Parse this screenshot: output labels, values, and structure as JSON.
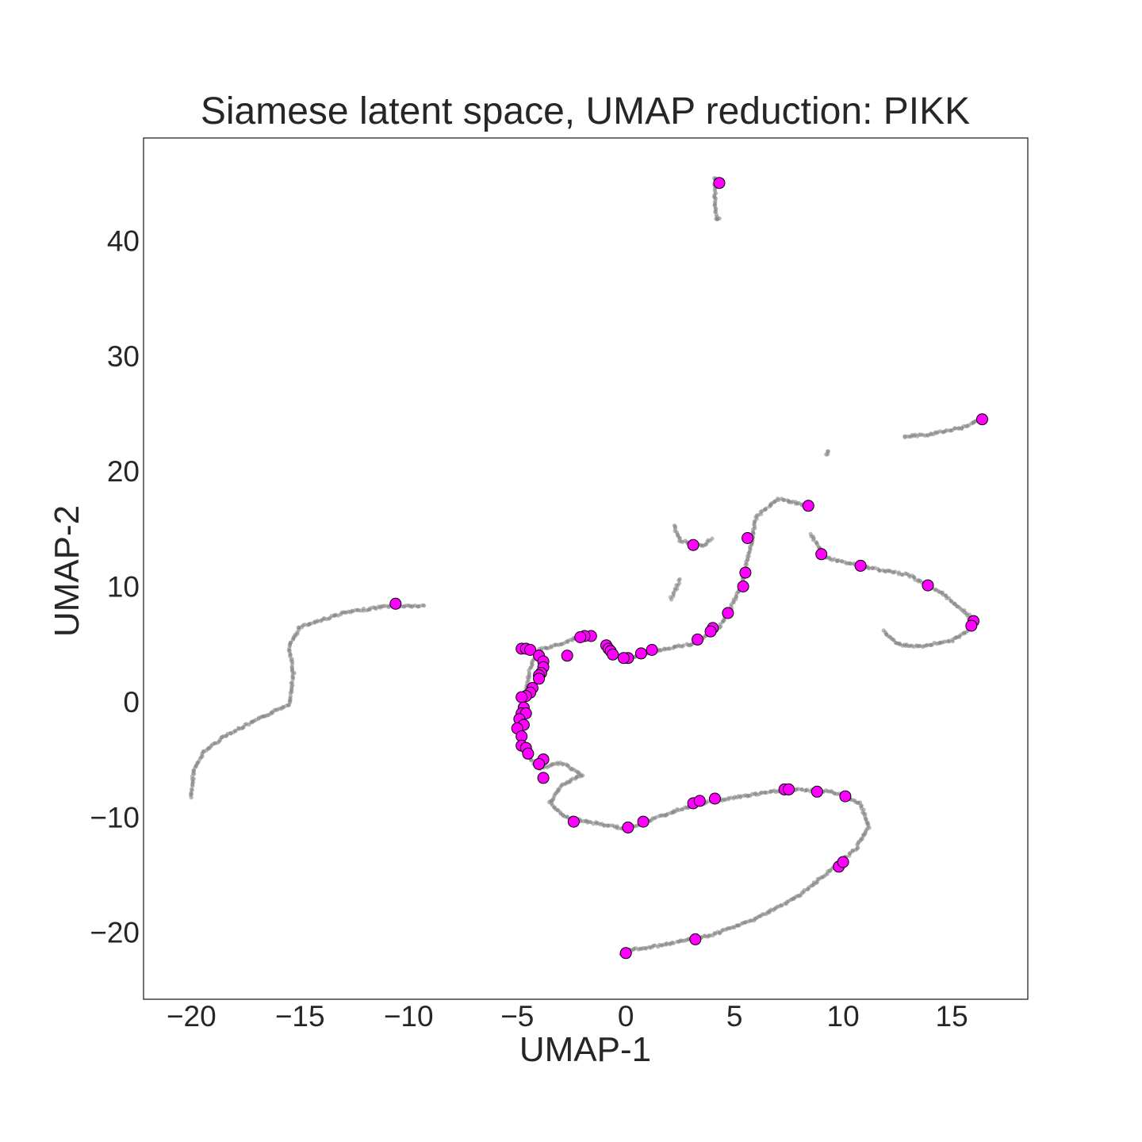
{
  "chart_data": {
    "type": "scatter",
    "title": "Siamese latent space, UMAP reduction: PIKK",
    "xlabel": "UMAP-1",
    "ylabel": "UMAP-2",
    "xlim": [
      -22.2,
      18.5
    ],
    "ylim": [
      -25.8,
      48.9
    ],
    "xticks": [
      {
        "value": -20,
        "label": "−20"
      },
      {
        "value": -15,
        "label": "−15"
      },
      {
        "value": -10,
        "label": "−10"
      },
      {
        "value": -5,
        "label": "−5"
      },
      {
        "value": 0,
        "label": "0"
      },
      {
        "value": 5,
        "label": "5"
      },
      {
        "value": 10,
        "label": "10"
      },
      {
        "value": 15,
        "label": "15"
      }
    ],
    "yticks": [
      {
        "value": -20,
        "label": "−20"
      },
      {
        "value": -10,
        "label": "−10"
      },
      {
        "value": 0,
        "label": "0"
      },
      {
        "value": 10,
        "label": "10"
      },
      {
        "value": 20,
        "label": "20"
      },
      {
        "value": 30,
        "label": "30"
      },
      {
        "value": 40,
        "label": "40"
      }
    ],
    "grid": false,
    "legend": "none",
    "colors": {
      "background_points": "#7f7f7f",
      "highlight_points": "#ff00ff",
      "highlight_edge": "#000000"
    },
    "background_curves": [
      [
        [
          -20.0,
          -8.3
        ],
        [
          -19.9,
          -6.0
        ],
        [
          -19.4,
          -4.3
        ],
        [
          -18.5,
          -3.0
        ],
        [
          -17.0,
          -1.6
        ],
        [
          -15.5,
          -0.2
        ],
        [
          -15.3,
          2.5
        ],
        [
          -15.5,
          4.8
        ],
        [
          -15.0,
          6.5
        ],
        [
          -13.0,
          7.7
        ],
        [
          -11.0,
          8.3
        ],
        [
          -9.2,
          8.3
        ]
      ],
      [
        [
          -2.0,
          5.8
        ],
        [
          -3.0,
          5.0
        ],
        [
          -4.0,
          4.5
        ],
        [
          -4.4,
          3.0
        ],
        [
          -4.6,
          1.0
        ],
        [
          -4.8,
          -1.0
        ],
        [
          -4.9,
          -3.0
        ],
        [
          -4.6,
          -4.5
        ],
        [
          -4.0,
          -5.8
        ],
        [
          -3.0,
          -5.3
        ],
        [
          -2.0,
          -6.3
        ],
        [
          -3.0,
          -7.3
        ],
        [
          -3.5,
          -8.8
        ],
        [
          -2.8,
          -10.0
        ],
        [
          -1.5,
          -10.5
        ],
        [
          0.0,
          -11.0
        ],
        [
          1.5,
          -10.0
        ],
        [
          3.0,
          -9.0
        ],
        [
          5.0,
          -8.3
        ],
        [
          7.5,
          -7.6
        ],
        [
          9.5,
          -7.8
        ],
        [
          10.8,
          -8.8
        ],
        [
          11.2,
          -10.8
        ],
        [
          10.6,
          -12.7
        ],
        [
          9.5,
          -14.5
        ],
        [
          8.0,
          -16.8
        ],
        [
          6.0,
          -18.8
        ],
        [
          4.0,
          -20.2
        ],
        [
          2.0,
          -21.0
        ],
        [
          0.0,
          -21.6
        ],
        [
          -0.3,
          -22.0
        ]
      ],
      [
        [
          -1.0,
          5.0
        ],
        [
          -0.6,
          4.2
        ],
        [
          0.0,
          3.8
        ],
        [
          0.6,
          3.9
        ],
        [
          1.5,
          4.5
        ],
        [
          3.0,
          5.0
        ],
        [
          4.2,
          6.2
        ],
        [
          4.8,
          8.0
        ],
        [
          5.3,
          10.0
        ],
        [
          5.7,
          13.0
        ],
        [
          6.0,
          16.0
        ],
        [
          7.0,
          17.6
        ],
        [
          8.3,
          17.0
        ]
      ],
      [
        [
          8.5,
          14.5
        ],
        [
          9.2,
          12.5
        ],
        [
          11.0,
          11.7
        ],
        [
          13.0,
          11.0
        ],
        [
          14.5,
          9.5
        ],
        [
          15.8,
          7.5
        ],
        [
          16.0,
          6.5
        ],
        [
          15.0,
          5.3
        ],
        [
          13.5,
          4.8
        ],
        [
          12.5,
          5.0
        ],
        [
          11.8,
          6.2
        ]
      ],
      [
        [
          12.8,
          23.0
        ],
        [
          14.0,
          23.2
        ],
        [
          15.5,
          23.8
        ],
        [
          16.4,
          24.5
        ]
      ],
      [
        [
          4.1,
          45.5
        ],
        [
          4.1,
          43.0
        ],
        [
          4.2,
          41.8
        ],
        [
          4.4,
          42.0
        ]
      ],
      [
        [
          2.2,
          15.3
        ],
        [
          2.5,
          14.0
        ],
        [
          3.5,
          13.5
        ],
        [
          4.0,
          14.2
        ]
      ],
      [
        [
          2.5,
          10.6
        ],
        [
          2.2,
          9.3
        ],
        [
          2.0,
          8.8
        ]
      ],
      [
        [
          9.3,
          21.8
        ],
        [
          9.2,
          21.3
        ]
      ]
    ],
    "highlight_points": [
      [
        4.3,
        45.0
      ],
      [
        16.4,
        24.5
      ],
      [
        -10.6,
        8.5
      ],
      [
        8.4,
        17.0
      ],
      [
        5.6,
        14.2
      ],
      [
        3.1,
        13.6
      ],
      [
        9.0,
        12.8
      ],
      [
        10.8,
        11.8
      ],
      [
        13.9,
        10.1
      ],
      [
        5.5,
        11.2
      ],
      [
        5.4,
        10.0
      ],
      [
        16.0,
        7.0
      ],
      [
        15.9,
        6.6
      ],
      [
        4.7,
        7.7
      ],
      [
        4.0,
        6.4
      ],
      [
        3.9,
        6.1
      ],
      [
        3.3,
        5.4
      ],
      [
        1.2,
        4.5
      ],
      [
        0.7,
        4.2
      ],
      [
        0.1,
        3.8
      ],
      [
        -0.1,
        3.8
      ],
      [
        -0.9,
        4.9
      ],
      [
        -0.8,
        4.6
      ],
      [
        -0.7,
        4.4
      ],
      [
        -0.6,
        4.1
      ],
      [
        -1.6,
        5.7
      ],
      [
        -1.9,
        5.7
      ],
      [
        -2.1,
        5.6
      ],
      [
        -2.7,
        4.0
      ],
      [
        -4.8,
        4.6
      ],
      [
        -4.6,
        4.6
      ],
      [
        -4.4,
        4.5
      ],
      [
        -4.0,
        4.0
      ],
      [
        -3.8,
        3.5
      ],
      [
        -3.8,
        3.0
      ],
      [
        -3.9,
        2.5
      ],
      [
        -4.0,
        2.3
      ],
      [
        -4.0,
        2.0
      ],
      [
        -4.3,
        1.2
      ],
      [
        -4.4,
        0.8
      ],
      [
        -4.6,
        0.5
      ],
      [
        -4.8,
        0.4
      ],
      [
        -4.7,
        -0.5
      ],
      [
        -4.8,
        -1.0
      ],
      [
        -4.6,
        -1.0
      ],
      [
        -4.9,
        -1.5
      ],
      [
        -4.7,
        -2.0
      ],
      [
        -5.0,
        -2.3
      ],
      [
        -4.8,
        -3.0
      ],
      [
        -4.8,
        -3.8
      ],
      [
        -4.6,
        -4.0
      ],
      [
        -4.5,
        -4.5
      ],
      [
        -3.8,
        -5.0
      ],
      [
        -4.0,
        -5.4
      ],
      [
        -3.8,
        -6.6
      ],
      [
        -2.4,
        -10.4
      ],
      [
        0.1,
        -10.9
      ],
      [
        0.8,
        -10.4
      ],
      [
        3.1,
        -8.8
      ],
      [
        3.4,
        -8.6
      ],
      [
        4.1,
        -8.4
      ],
      [
        7.3,
        -7.6
      ],
      [
        7.5,
        -7.6
      ],
      [
        8.8,
        -7.8
      ],
      [
        10.1,
        -8.2
      ],
      [
        9.8,
        -14.3
      ],
      [
        10.0,
        -13.9
      ],
      [
        3.2,
        -20.6
      ],
      [
        0.0,
        -21.8
      ]
    ]
  }
}
